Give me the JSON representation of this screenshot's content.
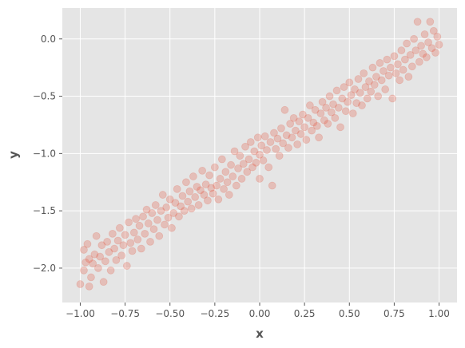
{
  "chart_data": {
    "type": "scatter",
    "title": "",
    "xlabel": "x",
    "ylabel": "y",
    "xlim": [
      -1.1,
      1.1
    ],
    "ylim": [
      -2.3,
      0.27
    ],
    "xticks": [
      -1.0,
      -0.75,
      -0.5,
      -0.25,
      0.0,
      0.25,
      0.5,
      0.75,
      1.0
    ],
    "xtick_labels": [
      "−1.00",
      "−0.75",
      "−0.50",
      "−0.25",
      "0.00",
      "0.25",
      "0.50",
      "0.75",
      "1.00"
    ],
    "yticks": [
      -2.0,
      -1.5,
      -1.0,
      -0.5,
      0.0
    ],
    "ytick_labels": [
      "−2.0",
      "−1.5",
      "−1.0",
      "−0.5",
      "0.0"
    ],
    "grid": true,
    "style": "ggplot",
    "colors": {
      "background": "#e5e5e5",
      "grid": "#ffffff",
      "marker": "#e24a33",
      "text": "#555555"
    },
    "marker_alpha": 0.25,
    "series": [
      {
        "points": [
          [
            -1.0,
            -2.14
          ],
          [
            -0.98,
            -2.02
          ],
          [
            -0.98,
            -1.84
          ],
          [
            -0.97,
            -1.95
          ],
          [
            -0.96,
            -1.79
          ],
          [
            -0.95,
            -2.16
          ],
          [
            -0.95,
            -1.92
          ],
          [
            -0.94,
            -2.08
          ],
          [
            -0.93,
            -1.96
          ],
          [
            -0.92,
            -1.88
          ],
          [
            -0.91,
            -1.72
          ],
          [
            -0.9,
            -2.0
          ],
          [
            -0.89,
            -1.9
          ],
          [
            -0.88,
            -1.8
          ],
          [
            -0.87,
            -2.12
          ],
          [
            -0.86,
            -1.94
          ],
          [
            -0.85,
            -1.77
          ],
          [
            -0.84,
            -1.86
          ],
          [
            -0.83,
            -2.02
          ],
          [
            -0.82,
            -1.7
          ],
          [
            -0.81,
            -1.83
          ],
          [
            -0.8,
            -1.93
          ],
          [
            -0.79,
            -1.76
          ],
          [
            -0.78,
            -1.65
          ],
          [
            -0.77,
            -1.89
          ],
          [
            -0.76,
            -1.8
          ],
          [
            -0.75,
            -1.71
          ],
          [
            -0.74,
            -1.98
          ],
          [
            -0.73,
            -1.6
          ],
          [
            -0.72,
            -1.78
          ],
          [
            -0.71,
            -1.85
          ],
          [
            -0.7,
            -1.69
          ],
          [
            -0.69,
            -1.57
          ],
          [
            -0.68,
            -1.75
          ],
          [
            -0.67,
            -1.63
          ],
          [
            -0.66,
            -1.83
          ],
          [
            -0.65,
            -1.55
          ],
          [
            -0.64,
            -1.7
          ],
          [
            -0.63,
            -1.49
          ],
          [
            -0.62,
            -1.61
          ],
          [
            -0.61,
            -1.77
          ],
          [
            -0.6,
            -1.52
          ],
          [
            -0.59,
            -1.66
          ],
          [
            -0.58,
            -1.45
          ],
          [
            -0.57,
            -1.58
          ],
          [
            -0.56,
            -1.72
          ],
          [
            -0.55,
            -1.5
          ],
          [
            -0.54,
            -1.36
          ],
          [
            -0.53,
            -1.62
          ],
          [
            -0.52,
            -1.47
          ],
          [
            -0.51,
            -1.56
          ],
          [
            -0.5,
            -1.4
          ],
          [
            -0.49,
            -1.65
          ],
          [
            -0.48,
            -1.52
          ],
          [
            -0.47,
            -1.43
          ],
          [
            -0.46,
            -1.31
          ],
          [
            -0.45,
            -1.55
          ],
          [
            -0.44,
            -1.46
          ],
          [
            -0.43,
            -1.37
          ],
          [
            -0.42,
            -1.5
          ],
          [
            -0.41,
            -1.25
          ],
          [
            -0.4,
            -1.42
          ],
          [
            -0.39,
            -1.33
          ],
          [
            -0.38,
            -1.48
          ],
          [
            -0.37,
            -1.2
          ],
          [
            -0.36,
            -1.38
          ],
          [
            -0.35,
            -1.29
          ],
          [
            -0.34,
            -1.45
          ],
          [
            -0.33,
            -1.32
          ],
          [
            -0.32,
            -1.15
          ],
          [
            -0.31,
            -1.36
          ],
          [
            -0.3,
            -1.27
          ],
          [
            -0.29,
            -1.41
          ],
          [
            -0.28,
            -1.19
          ],
          [
            -0.27,
            -1.3
          ],
          [
            -0.26,
            -1.35
          ],
          [
            -0.25,
            -1.12
          ],
          [
            -0.24,
            -1.28
          ],
          [
            -0.23,
            -1.4
          ],
          [
            -0.22,
            -1.22
          ],
          [
            -0.21,
            -1.05
          ],
          [
            -0.2,
            -1.31
          ],
          [
            -0.19,
            -1.16
          ],
          [
            -0.18,
            -1.25
          ],
          [
            -0.17,
            -1.36
          ],
          [
            -0.16,
            -1.1
          ],
          [
            -0.15,
            -1.2
          ],
          [
            -0.14,
            -0.98
          ],
          [
            -0.13,
            -1.28
          ],
          [
            -0.12,
            -1.13
          ],
          [
            -0.11,
            -1.02
          ],
          [
            -0.1,
            -1.22
          ],
          [
            -0.09,
            -1.09
          ],
          [
            -0.08,
            -0.94
          ],
          [
            -0.07,
            -1.16
          ],
          [
            -0.06,
            -1.05
          ],
          [
            -0.05,
            -0.9
          ],
          [
            -0.04,
            -1.12
          ],
          [
            -0.03,
            -0.98
          ],
          [
            -0.02,
            -1.08
          ],
          [
            -0.01,
            -0.86
          ],
          [
            0.0,
            -1.01
          ],
          [
            0.0,
            -1.22
          ],
          [
            0.01,
            -0.93
          ],
          [
            0.02,
            -1.06
          ],
          [
            0.03,
            -0.85
          ],
          [
            0.04,
            -0.97
          ],
          [
            0.05,
            -1.12
          ],
          [
            0.06,
            -0.9
          ],
          [
            0.07,
            -1.28
          ],
          [
            0.08,
            -0.82
          ],
          [
            0.09,
            -0.96
          ],
          [
            0.1,
            -0.87
          ],
          [
            0.11,
            -1.02
          ],
          [
            0.12,
            -0.78
          ],
          [
            0.13,
            -0.91
          ],
          [
            0.14,
            -0.62
          ],
          [
            0.15,
            -0.84
          ],
          [
            0.16,
            -0.95
          ],
          [
            0.17,
            -0.74
          ],
          [
            0.18,
            -0.86
          ],
          [
            0.19,
            -0.69
          ],
          [
            0.2,
            -0.8
          ],
          [
            0.21,
            -0.92
          ],
          [
            0.22,
            -0.72
          ],
          [
            0.23,
            -0.83
          ],
          [
            0.24,
            -0.66
          ],
          [
            0.25,
            -0.77
          ],
          [
            0.26,
            -0.88
          ],
          [
            0.27,
            -0.69
          ],
          [
            0.28,
            -0.58
          ],
          [
            0.29,
            -0.8
          ],
          [
            0.3,
            -0.73
          ],
          [
            0.31,
            -0.62
          ],
          [
            0.32,
            -0.76
          ],
          [
            0.33,
            -0.86
          ],
          [
            0.34,
            -0.65
          ],
          [
            0.35,
            -0.55
          ],
          [
            0.36,
            -0.71
          ],
          [
            0.37,
            -0.6
          ],
          [
            0.38,
            -0.74
          ],
          [
            0.39,
            -0.5
          ],
          [
            0.4,
            -0.64
          ],
          [
            0.41,
            -0.57
          ],
          [
            0.42,
            -0.69
          ],
          [
            0.43,
            -0.45
          ],
          [
            0.44,
            -0.6
          ],
          [
            0.45,
            -0.77
          ],
          [
            0.46,
            -0.52
          ],
          [
            0.47,
            -0.42
          ],
          [
            0.48,
            -0.63
          ],
          [
            0.49,
            -0.55
          ],
          [
            0.5,
            -0.38
          ],
          [
            0.51,
            -0.49
          ],
          [
            0.52,
            -0.65
          ],
          [
            0.53,
            -0.44
          ],
          [
            0.54,
            -0.56
          ],
          [
            0.55,
            -0.35
          ],
          [
            0.56,
            -0.47
          ],
          [
            0.57,
            -0.58
          ],
          [
            0.58,
            -0.3
          ],
          [
            0.59,
            -0.42
          ],
          [
            0.6,
            -0.52
          ],
          [
            0.61,
            -0.37
          ],
          [
            0.62,
            -0.46
          ],
          [
            0.63,
            -0.25
          ],
          [
            0.64,
            -0.4
          ],
          [
            0.65,
            -0.33
          ],
          [
            0.66,
            -0.5
          ],
          [
            0.67,
            -0.21
          ],
          [
            0.68,
            -0.36
          ],
          [
            0.69,
            -0.28
          ],
          [
            0.7,
            -0.44
          ],
          [
            0.71,
            -0.18
          ],
          [
            0.72,
            -0.32
          ],
          [
            0.73,
            -0.25
          ],
          [
            0.74,
            -0.52
          ],
          [
            0.75,
            -0.15
          ],
          [
            0.76,
            -0.3
          ],
          [
            0.77,
            -0.22
          ],
          [
            0.78,
            -0.36
          ],
          [
            0.79,
            -0.1
          ],
          [
            0.8,
            -0.27
          ],
          [
            0.81,
            -0.18
          ],
          [
            0.82,
            -0.04
          ],
          [
            0.83,
            -0.33
          ],
          [
            0.84,
            -0.14
          ],
          [
            0.85,
            -0.24
          ],
          [
            0.86,
            0.0
          ],
          [
            0.87,
            -0.1
          ],
          [
            0.88,
            0.15
          ],
          [
            0.89,
            -0.2
          ],
          [
            0.9,
            -0.06
          ],
          [
            0.91,
            -0.13
          ],
          [
            0.92,
            0.04
          ],
          [
            0.93,
            -0.16
          ],
          [
            0.94,
            -0.03
          ],
          [
            0.95,
            0.15
          ],
          [
            0.96,
            -0.08
          ],
          [
            0.97,
            0.07
          ],
          [
            0.98,
            -0.12
          ],
          [
            0.99,
            0.02
          ],
          [
            1.0,
            -0.05
          ]
        ]
      }
    ]
  }
}
